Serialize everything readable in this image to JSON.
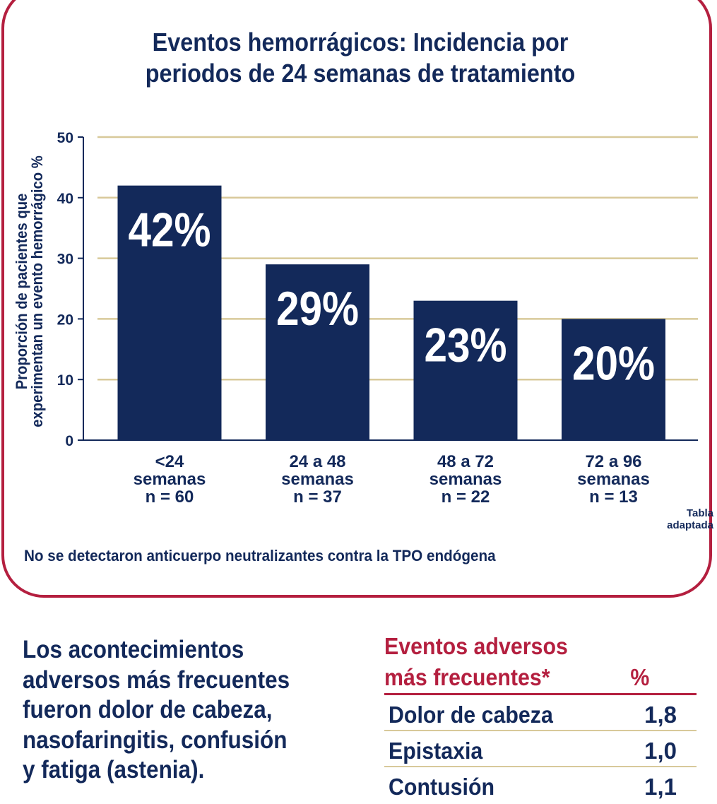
{
  "chart_data": {
    "type": "bar",
    "title": "Eventos hemorrágicos: Incidencia por periodos de 24 semanas de tratamiento",
    "title_lines": [
      "Eventos hemorrágicos: Incidencia por",
      "periodos de 24 semanas de tratamiento"
    ],
    "ylabel": "Proporción de pacientes que experimentan un evento hemorrágico %",
    "ylabel_lines": [
      "Proporción de pacientes que",
      "experimentan un evento hemorrágico %"
    ],
    "categories": [
      [
        "<24",
        "semanas",
        "n = 60"
      ],
      [
        "24 a 48",
        "semanas",
        "n = 37"
      ],
      [
        "48 a 72",
        "semanas",
        "n = 22"
      ],
      [
        "72 a 96",
        "semanas",
        "n = 13"
      ]
    ],
    "values": [
      42,
      29,
      23,
      20
    ],
    "data_labels": [
      "42%",
      "29%",
      "23%",
      "20%"
    ],
    "ylim": [
      0,
      50
    ],
    "yticks": [
      0,
      10,
      20,
      30,
      40,
      50
    ],
    "grid": true,
    "bar_color": "#13295a",
    "grid_color": "#d8c99a"
  },
  "source_note": [
    "Tabla",
    "adaptada"
  ],
  "footnote": "No se detectaron anticuerpo neutralizantes contra la TPO endógena",
  "paragraph_lines": [
    "Los acontecimientos",
    "adversos más frecuentes",
    "fueron dolor de cabeza,",
    "nasofaringitis, confusión",
    "y fatiga (astenia)."
  ],
  "adverse_table": {
    "title_line1": "Eventos adversos",
    "title_line2": "más frecuentes*",
    "pct_header": "%",
    "rows": [
      {
        "name": "Dolor de cabeza",
        "value": "1,8"
      },
      {
        "name": "Epistaxia",
        "value": "1,0"
      },
      {
        "name": "Contusión",
        "value": "1,1"
      }
    ]
  },
  "colors": {
    "navy": "#13295a",
    "crimson": "#b41f3f",
    "gold_rule": "#d8c99a"
  }
}
